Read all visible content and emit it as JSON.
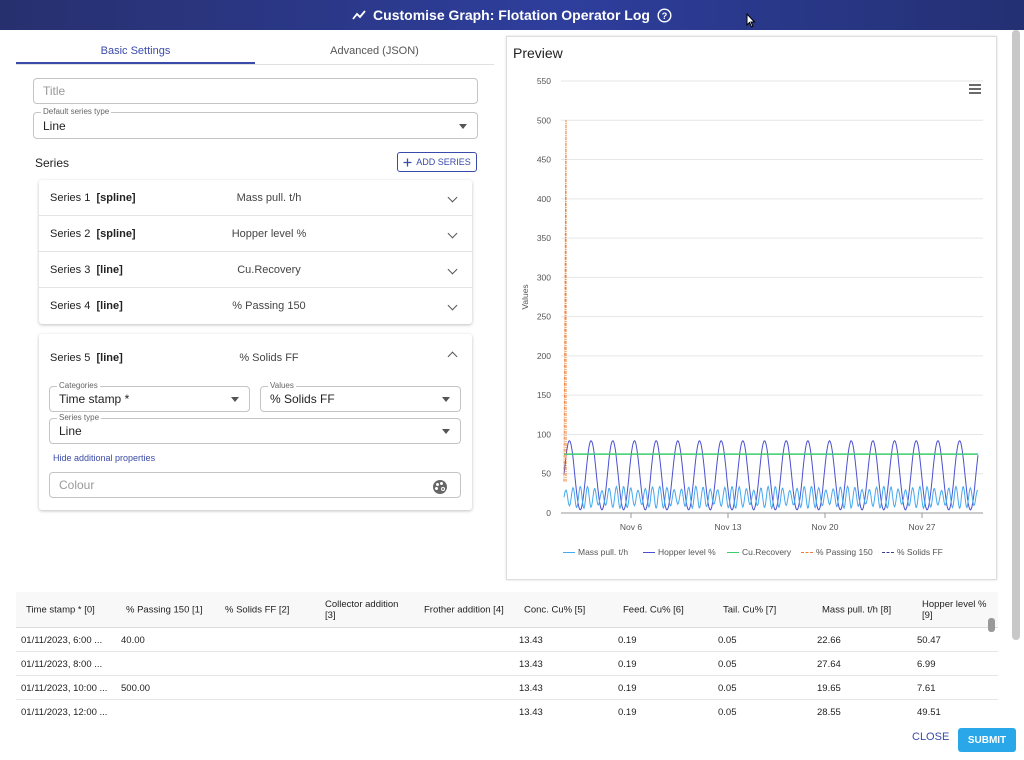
{
  "dialog": {
    "title": "Customise Graph: Flotation Operator Log"
  },
  "tabs": [
    "Basic Settings",
    "Advanced (JSON)"
  ],
  "form": {
    "title_placeholder": "Title",
    "default_type_label": "Default series type",
    "default_type_value": "Line",
    "series_heading": "Series",
    "add_series_label": "ADD SERIES"
  },
  "series": [
    {
      "name": "Series 1",
      "type": "[spline]",
      "value": "Mass pull. t/h"
    },
    {
      "name": "Series 2",
      "type": "[spline]",
      "value": "Hopper level %"
    },
    {
      "name": "Series 3",
      "type": "[line]",
      "value": "Cu.Recovery"
    },
    {
      "name": "Series 4",
      "type": "[line]",
      "value": "% Passing 150"
    }
  ],
  "expanded": {
    "name": "Series 5",
    "type": "[line]",
    "value": "% Solids FF",
    "categories_label": "Categories",
    "categories_value": "Time stamp *",
    "values_label": "Values",
    "values_value": "% Solids FF",
    "series_type_label": "Series type",
    "series_type_value": "Line",
    "hide_link": "Hide additional properties",
    "colour_placeholder": "Colour"
  },
  "preview": {
    "title": "Preview"
  },
  "chart_data": {
    "type": "line",
    "ylabel": "Values",
    "ylim": [
      0,
      550
    ],
    "yticks": [
      "550",
      "500",
      "450",
      "400",
      "350",
      "300",
      "250",
      "200",
      "150",
      "100",
      "50",
      "0"
    ],
    "xticks": [
      "Nov 6",
      "Nov 13",
      "Nov 20",
      "Nov 27"
    ],
    "legend": [
      "Mass pull. t/h",
      "Hopper level %",
      "Cu.Recovery",
      "% Passing 150",
      "% Solids FF"
    ],
    "legend_position": "bottom",
    "grid": true,
    "colors": {
      "mass": "#45a9ee",
      "hopper": "#4b4fcf",
      "recovery": "#3dcc6c",
      "passing": "#f07b32",
      "solids": "#3a3d8a"
    },
    "series": [
      {
        "name": "Mass pull. t/h",
        "values": [
          22.66,
          27.64,
          19.65,
          28.55
        ]
      },
      {
        "name": "Hopper level %",
        "values": [
          50.47,
          6.99,
          7.61,
          49.51
        ]
      },
      {
        "name": "Cu.Recovery",
        "values": [
          75
        ]
      },
      {
        "name": "% Passing 150",
        "values": [
          40,
          500
        ]
      },
      {
        "name": "% Solids FF",
        "values": []
      }
    ]
  },
  "table": {
    "headers": [
      "Time stamp * [0]",
      "% Passing 150 [1]",
      "% Solids FF [2]",
      "Collector addition [3]",
      "Frother addition [4]",
      "Conc. Cu% [5]",
      "Feed. Cu% [6]",
      "Tail. Cu% [7]",
      "Mass pull. t/h [8]",
      "Hopper level % [9]"
    ],
    "rows": [
      [
        "01/11/2023, 6:00 ...",
        "40.00",
        "",
        "",
        "",
        "13.43",
        "0.19",
        "0.05",
        "22.66",
        "50.47"
      ],
      [
        "01/11/2023, 8:00 ...",
        "",
        "",
        "",
        "",
        "13.43",
        "0.19",
        "0.05",
        "27.64",
        "6.99"
      ],
      [
        "01/11/2023, 10:00 ...",
        "500.00",
        "",
        "",
        "",
        "13.43",
        "0.19",
        "0.05",
        "19.65",
        "7.61"
      ],
      [
        "01/11/2023, 12:00 ...",
        "",
        "",
        "",
        "",
        "13.43",
        "0.19",
        "0.05",
        "28.55",
        "49.51"
      ]
    ]
  },
  "actions": {
    "close": "CLOSE",
    "submit": "SUBMIT"
  }
}
